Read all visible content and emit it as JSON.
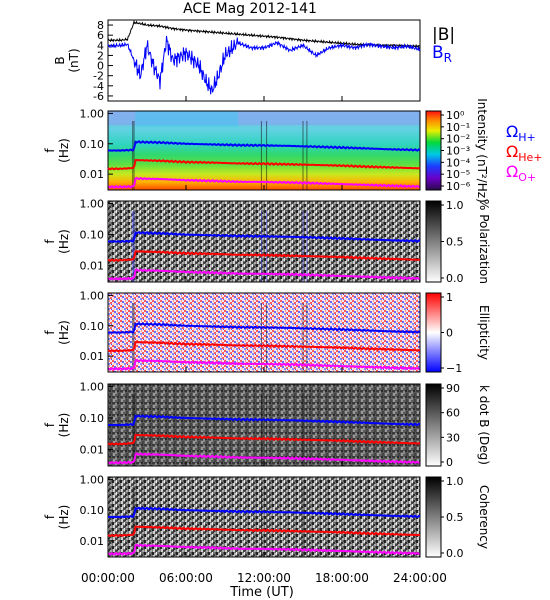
{
  "title": "ACE Mag 2012-141",
  "x_axis": {
    "label": "Time (UT)",
    "ticks": [
      "00:00:00",
      "06:00:00",
      "12:00:00",
      "18:00:00",
      "24:00:00"
    ]
  },
  "chart_data": [
    {
      "type": "line",
      "panel": "B",
      "ylabel": "B (nT)",
      "ylabel_top": "B",
      "ylabel_unit": "(nT)",
      "yticks": [
        "8",
        "6",
        "4",
        "2",
        "0",
        "-2",
        "-4",
        "-6"
      ],
      "ylim": [
        -7,
        9
      ],
      "xlim": [
        0,
        24
      ],
      "legend": [
        "|B|",
        "B_R"
      ],
      "series": [
        {
          "name": "|B|",
          "color": "#000000",
          "x": [
            0,
            1,
            1.5,
            2,
            2.5,
            3,
            4,
            5,
            6,
            7,
            8,
            9,
            10,
            11,
            12,
            13,
            14,
            15,
            16,
            17,
            18,
            19,
            20,
            21,
            22,
            23,
            24
          ],
          "values": [
            5.0,
            5.0,
            5.2,
            8.5,
            8.3,
            8.0,
            7.8,
            7.3,
            7.0,
            6.8,
            6.6,
            6.4,
            6.2,
            6.0,
            5.8,
            5.6,
            5.3,
            5.0,
            4.8,
            4.6,
            4.4,
            4.2,
            4.1,
            4.0,
            4.0,
            3.9,
            3.8
          ]
        },
        {
          "name": "B_R",
          "color": "#0000ff",
          "x": [
            0,
            1,
            1.5,
            2,
            2.5,
            3,
            3.5,
            4,
            4.5,
            5,
            6,
            7,
            7.5,
            8,
            8.5,
            9,
            10,
            11,
            12,
            13,
            14,
            15,
            16,
            17,
            18,
            19,
            20,
            21,
            22,
            23,
            24
          ],
          "values": [
            3.8,
            4.0,
            4.2,
            1.0,
            -2.0,
            4.0,
            0.0,
            -3.0,
            5.0,
            1.0,
            2.5,
            0.0,
            -3.0,
            -5.0,
            -2.0,
            2.0,
            4.5,
            3.5,
            3.5,
            4.5,
            3.0,
            4.0,
            2.0,
            3.5,
            4.0,
            3.5,
            4.2,
            3.8,
            3.5,
            3.8,
            3.2
          ]
        }
      ]
    },
    {
      "type": "heatmap",
      "panel": "intensity",
      "ylabel": "f (Hz)",
      "yticks": [
        "1.00",
        "0.10",
        "0.01"
      ],
      "colorbar_label": "Intensity (nT²/Hz)",
      "colorbar_ticks": [
        "10⁰",
        "10⁻¹",
        "10⁻²",
        "10⁻³",
        "10⁻⁴",
        "10⁻⁵",
        "10⁻⁶"
      ],
      "legend": [
        "ΩH+",
        "ΩHe+",
        "ΩO+"
      ]
    },
    {
      "type": "heatmap",
      "panel": "polarization",
      "ylabel": "f (Hz)",
      "yticks": [
        "1.00",
        "0.10",
        "0.01"
      ],
      "colorbar_label": "% Polarization",
      "colorbar_ticks": [
        "1.0",
        "0.5",
        "0.0"
      ]
    },
    {
      "type": "heatmap",
      "panel": "ellipticity",
      "ylabel": "f (Hz)",
      "yticks": [
        "1.00",
        "0.10",
        "0.01"
      ],
      "colorbar_label": "Ellipticity",
      "colorbar_ticks": [
        "1",
        "0",
        "−1"
      ]
    },
    {
      "type": "heatmap",
      "panel": "kdotb",
      "ylabel": "f (Hz)",
      "yticks": [
        "1.00",
        "0.10",
        "0.01"
      ],
      "colorbar_label": "k dot B (Deg)",
      "colorbar_ticks": [
        "90",
        "60",
        "30",
        "0"
      ]
    },
    {
      "type": "heatmap",
      "panel": "coherency",
      "ylabel": "f (Hz)",
      "yticks": [
        "1.00",
        "0.10",
        "0.01"
      ],
      "colorbar_label": "Coherency",
      "colorbar_ticks": [
        "1.0",
        "0.5",
        "0.0"
      ]
    }
  ],
  "gyrofrequency_lines": [
    {
      "name": "ΩH+",
      "label": "Ω",
      "sub": "H+",
      "color": "#0000ff",
      "x": [
        0,
        1,
        2,
        2.1,
        4,
        6,
        8,
        10,
        12,
        14,
        16,
        18,
        20,
        22,
        24
      ],
      "f": [
        0.06,
        0.06,
        0.063,
        0.115,
        0.11,
        0.1,
        0.095,
        0.09,
        0.088,
        0.085,
        0.08,
        0.075,
        0.07,
        0.065,
        0.062
      ]
    },
    {
      "name": "ΩHe+",
      "label": "Ω",
      "sub": "He+",
      "color": "#ff0000",
      "x": [
        0,
        1,
        2,
        2.1,
        4,
        6,
        8,
        10,
        12,
        14,
        16,
        18,
        20,
        22,
        24
      ],
      "f": [
        0.015,
        0.015,
        0.016,
        0.029,
        0.0275,
        0.025,
        0.024,
        0.0225,
        0.022,
        0.021,
        0.02,
        0.019,
        0.0175,
        0.0165,
        0.0155
      ]
    },
    {
      "name": "ΩO+",
      "label": "Ω",
      "sub": "O+",
      "color": "#ff00ff",
      "x": [
        0,
        1,
        2,
        2.1,
        4,
        6,
        8,
        10,
        12,
        14,
        16,
        18,
        20,
        22,
        24
      ],
      "f": [
        0.0038,
        0.0038,
        0.0039,
        0.0072,
        0.0069,
        0.0063,
        0.006,
        0.0056,
        0.0055,
        0.0053,
        0.005,
        0.0047,
        0.0044,
        0.0041,
        0.0039
      ]
    }
  ],
  "colors": {
    "background": "#ffffff",
    "axis": "#000000"
  }
}
